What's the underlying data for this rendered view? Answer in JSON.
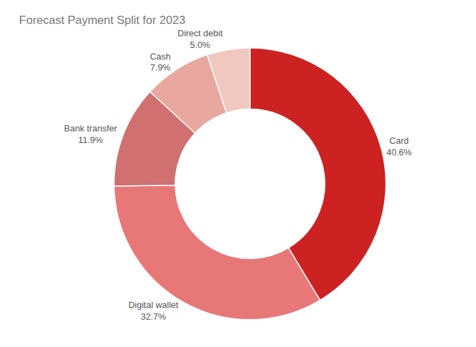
{
  "chart_data": {
    "type": "donut",
    "title": "Forecast Payment Split for 2023",
    "categories": [
      "Card",
      "Digital wallet",
      "Bank transfer",
      "Cash",
      "Direct debit"
    ],
    "values": [
      40.6,
      32.7,
      11.9,
      7.9,
      5.0
    ],
    "value_labels": [
      "40.6%",
      "32.7%",
      "11.9%",
      "7.9%",
      "5.0%"
    ],
    "colors": [
      "#cc2222",
      "#e87878",
      "#d07070",
      "#e8a8a0",
      "#f0c8c0"
    ],
    "data_labels": true
  }
}
